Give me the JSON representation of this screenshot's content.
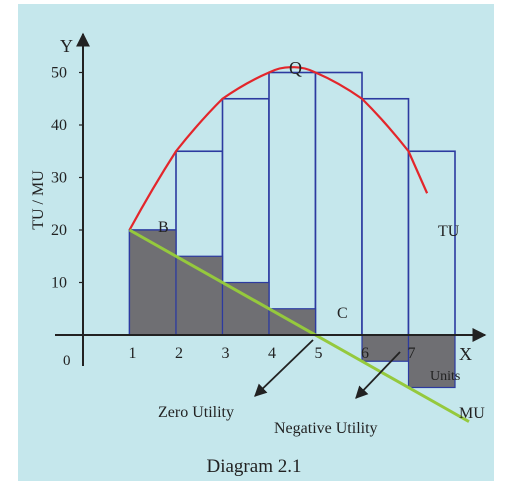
{
  "colors": {
    "background": "#c5e7ec",
    "bar_edge": "#2c3aa0",
    "shade": "#6f6f73",
    "tu_curve": "#e3262b",
    "mu_line": "#95c93d",
    "axis": "#222222"
  },
  "chart_data": {
    "type": "bar",
    "title": "",
    "caption": "Diagram 2.1",
    "xlabel": "Units",
    "ylabel": "TU / MU",
    "x_axis_letter": "X",
    "y_axis_letter": "Y",
    "origin_label": "0",
    "x_ticks": [
      "1",
      "2",
      "3",
      "4",
      "5",
      "6",
      "7"
    ],
    "y_ticks": [
      "10",
      "20",
      "30",
      "40",
      "50"
    ],
    "xlim": [
      0,
      8.6
    ],
    "ylim": [
      -5.5,
      58
    ],
    "grid": false,
    "units": [
      1,
      2,
      3,
      4,
      5,
      6,
      7
    ],
    "total_utility": [
      20,
      35,
      45,
      50,
      50,
      45,
      35
    ],
    "marginal_utility": [
      20,
      15,
      10,
      5,
      0,
      -5,
      -10
    ],
    "series": [
      {
        "name": "TU",
        "values": [
          20,
          35,
          45,
          50,
          50,
          45,
          35
        ]
      },
      {
        "name": "MU",
        "values": [
          20,
          15,
          10,
          5,
          0,
          -5,
          -10
        ]
      }
    ],
    "point_labels": {
      "B": "B",
      "Q": "Q",
      "C": "C"
    },
    "annotations": {
      "zero_utility": "Zero Utility",
      "negative_utility": "Negative Utility"
    }
  }
}
